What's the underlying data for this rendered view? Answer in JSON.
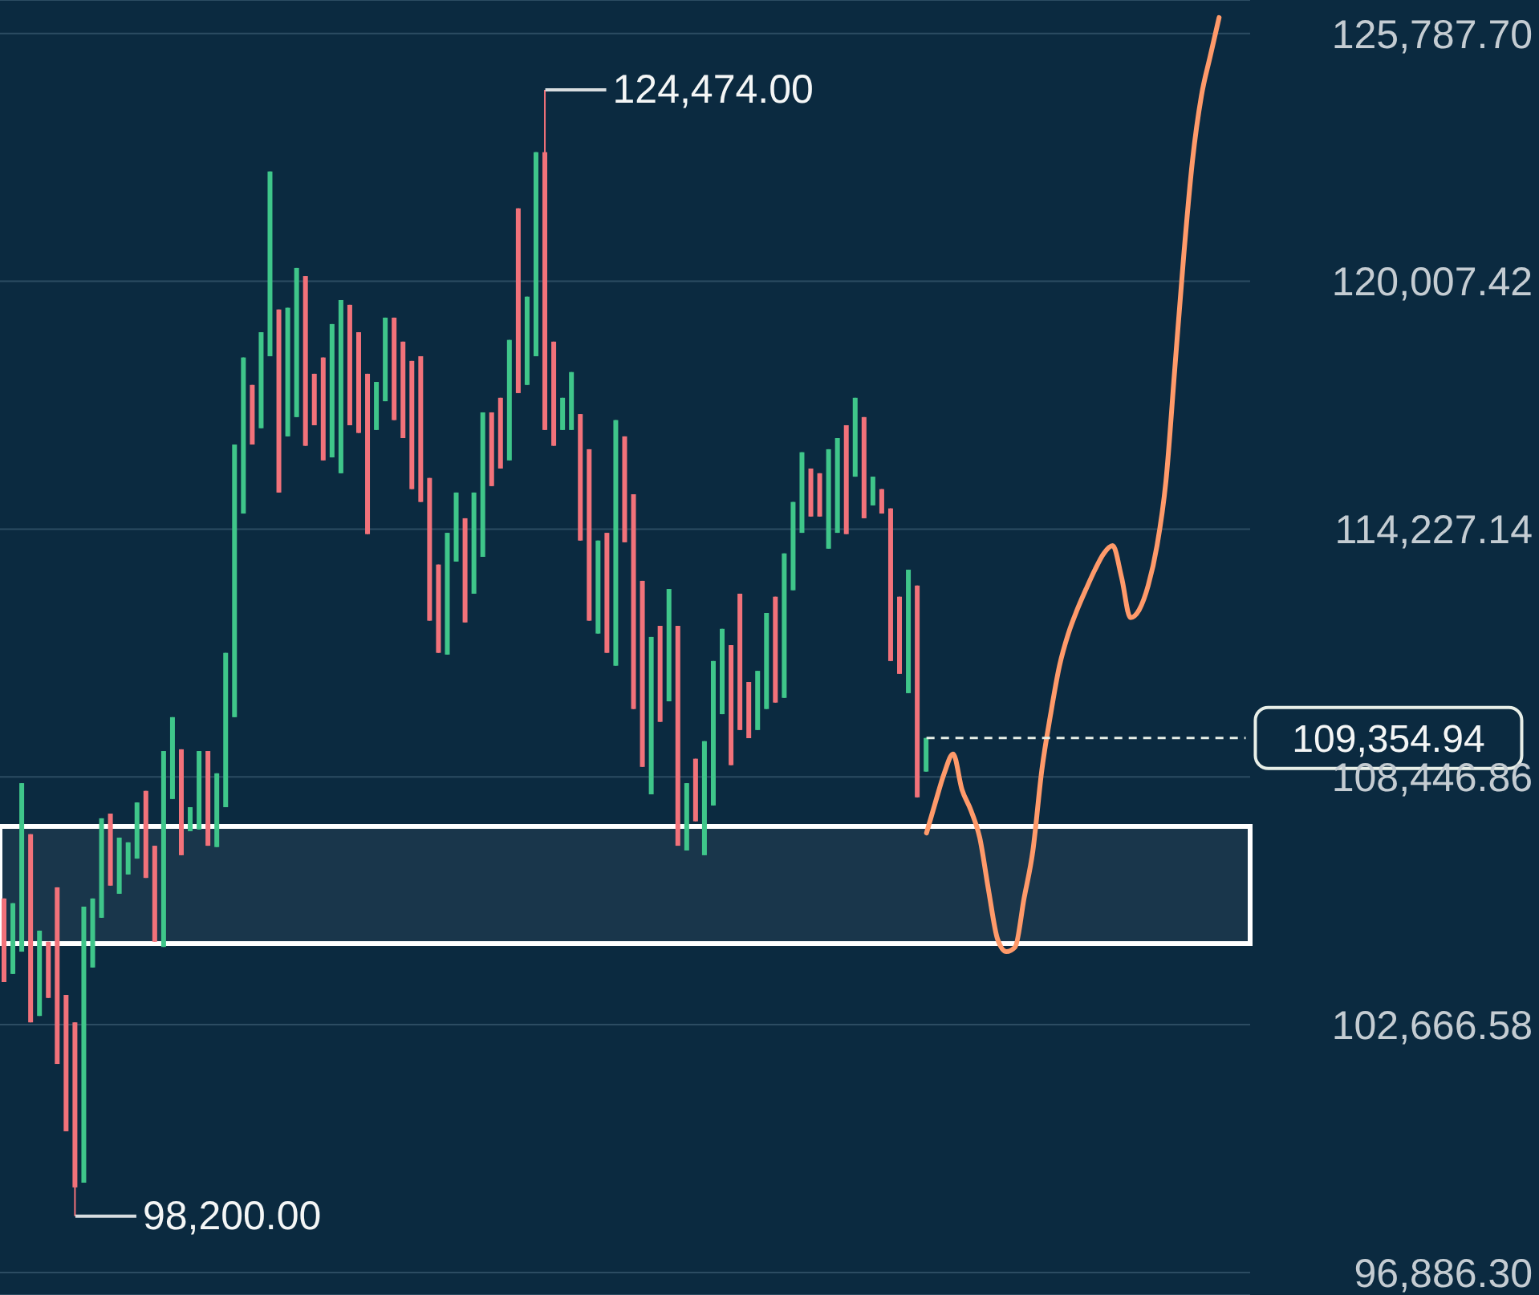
{
  "chart_data": {
    "type": "candlestick",
    "categories": [
      null,
      null,
      null,
      null,
      null,
      null,
      null,
      null,
      null,
      null,
      null,
      null,
      null,
      null,
      null,
      null,
      null,
      null,
      null,
      null,
      null,
      null,
      null,
      null,
      null,
      null,
      null,
      null,
      null,
      null,
      null,
      null,
      null,
      null,
      null,
      null,
      null,
      null,
      null,
      null,
      null,
      null,
      null,
      null,
      null,
      null,
      null,
      null,
      null,
      null,
      null,
      null,
      null,
      null,
      null,
      null,
      null,
      null,
      null,
      null,
      null,
      null,
      null,
      null,
      null,
      null,
      null,
      null,
      null,
      null,
      null,
      null,
      null,
      null,
      null,
      null,
      null,
      null,
      null,
      null,
      null,
      null,
      null,
      null,
      null,
      null,
      null,
      null,
      null,
      null,
      null,
      null,
      null,
      null,
      null,
      null,
      null,
      null,
      null,
      null,
      null,
      null,
      null,
      null,
      null,
      null,
      null,
      null,
      null,
      null,
      null,
      null,
      null,
      null,
      null,
      null,
      null,
      null,
      null,
      null,
      null,
      null,
      null,
      null,
      null,
      null,
      null,
      null,
      null,
      null,
      null,
      null,
      null,
      null,
      null,
      null,
      null,
      null,
      null,
      null,
      null
    ],
    "ohlc": [
      [
        105610,
        105610,
        103660,
        103660
      ],
      [
        103850,
        105500,
        103850,
        105500
      ],
      [
        104370,
        108300,
        104370,
        108300
      ],
      [
        107110,
        107110,
        102720,
        102720
      ],
      [
        102870,
        104860,
        102870,
        104860
      ],
      [
        104600,
        104600,
        103290,
        103290
      ],
      [
        105870,
        105870,
        101750,
        101750
      ],
      [
        103360,
        103360,
        100180,
        100180
      ],
      [
        102720,
        102720,
        98200,
        98870
      ],
      [
        98980,
        105420,
        98980,
        105420
      ],
      [
        104000,
        105610,
        104000,
        105610
      ],
      [
        105160,
        107480,
        105160,
        107480
      ],
      [
        107590,
        107590,
        105910,
        105910
      ],
      [
        105720,
        107030,
        105720,
        107030
      ],
      [
        106170,
        106920,
        106170,
        106920
      ],
      [
        106540,
        107850,
        106540,
        107850
      ],
      [
        108120,
        108120,
        106090,
        106090
      ],
      [
        106840,
        106840,
        104600,
        104600
      ],
      [
        104480,
        109050,
        104480,
        109050
      ],
      [
        107930,
        109840,
        107930,
        109840
      ],
      [
        109090,
        109090,
        106620,
        106620
      ],
      [
        107180,
        107740,
        107180,
        107740
      ],
      [
        107220,
        109050,
        107220,
        109050
      ],
      [
        109050,
        109050,
        106840,
        106840
      ],
      [
        106810,
        108530,
        106810,
        108530
      ],
      [
        107740,
        111340,
        107740,
        111340
      ],
      [
        109840,
        116200,
        109840,
        116200
      ],
      [
        114590,
        118230,
        114590,
        118230
      ],
      [
        117590,
        117590,
        116200,
        116200
      ],
      [
        116580,
        118820,
        116580,
        118820
      ],
      [
        118260,
        122570,
        118260,
        122570
      ],
      [
        119350,
        119350,
        115080,
        115080
      ],
      [
        116390,
        119390,
        116390,
        119390
      ],
      [
        116840,
        120320,
        116840,
        120320
      ],
      [
        120130,
        120130,
        116170,
        116170
      ],
      [
        117850,
        117850,
        116650,
        116650
      ],
      [
        118230,
        118230,
        115830,
        115830
      ],
      [
        115900,
        119010,
        115900,
        119010
      ],
      [
        115530,
        119570,
        115530,
        119570
      ],
      [
        119460,
        119460,
        116650,
        116650
      ],
      [
        118820,
        118820,
        116470,
        116470
      ],
      [
        117850,
        117850,
        114110,
        114110
      ],
      [
        116540,
        117660,
        116540,
        117660
      ],
      [
        117210,
        119160,
        117210,
        119160
      ],
      [
        119160,
        119160,
        116770,
        116770
      ],
      [
        118600,
        118600,
        116350,
        116350
      ],
      [
        118150,
        118150,
        115160,
        115160
      ],
      [
        118260,
        118260,
        114860,
        114860
      ],
      [
        115420,
        115420,
        112090,
        112090
      ],
      [
        113400,
        113400,
        111340,
        111340
      ],
      [
        111300,
        114140,
        111300,
        114140
      ],
      [
        113470,
        115080,
        113470,
        115080
      ],
      [
        114480,
        114480,
        112050,
        112050
      ],
      [
        112720,
        115080,
        112720,
        115080
      ],
      [
        113580,
        116950,
        113580,
        116950
      ],
      [
        116950,
        116950,
        115230,
        115230
      ],
      [
        117290,
        117290,
        115640,
        115640
      ],
      [
        115830,
        118640,
        115830,
        118640
      ],
      [
        121710,
        121710,
        117400,
        117400
      ],
      [
        117590,
        119650,
        117590,
        119650
      ],
      [
        118260,
        123020,
        118260,
        123020
      ],
      [
        123020,
        124474,
        116540,
        116540
      ],
      [
        118600,
        118600,
        116170,
        116170
      ],
      [
        116540,
        117290,
        116540,
        117290
      ],
      [
        116540,
        117890,
        116540,
        117890
      ],
      [
        116910,
        116910,
        113960,
        113960
      ],
      [
        116090,
        116090,
        112090,
        112090
      ],
      [
        111790,
        113960,
        111790,
        113960
      ],
      [
        114140,
        114140,
        111340,
        111340
      ],
      [
        111040,
        116770,
        111040,
        116770
      ],
      [
        116390,
        116390,
        113920,
        113920
      ],
      [
        115040,
        115040,
        110030,
        110030
      ],
      [
        113020,
        113020,
        108680,
        108680
      ],
      [
        108040,
        111710,
        108040,
        111710
      ],
      [
        111970,
        111970,
        109730,
        109730
      ],
      [
        110210,
        112830,
        110210,
        112830
      ],
      [
        111970,
        111970,
        106840,
        106840
      ],
      [
        106730,
        108300,
        106730,
        108300
      ],
      [
        108870,
        108870,
        107410,
        107410
      ],
      [
        106620,
        109280,
        106620,
        109280
      ],
      [
        107780,
        111150,
        107780,
        111150
      ],
      [
        109910,
        111900,
        109910,
        111900
      ],
      [
        111520,
        111520,
        108720,
        108720
      ],
      [
        112720,
        112720,
        109540,
        109540
      ],
      [
        110660,
        110660,
        109350,
        109350
      ],
      [
        109540,
        110920,
        109540,
        110920
      ],
      [
        110030,
        112270,
        110030,
        112270
      ],
      [
        112650,
        112650,
        110180,
        110180
      ],
      [
        110290,
        113660,
        110290,
        113660
      ],
      [
        112800,
        114860,
        112800,
        114860
      ],
      [
        114140,
        116020,
        114140,
        116020
      ],
      [
        115640,
        115640,
        114520,
        114520
      ],
      [
        115530,
        115530,
        114520,
        114520
      ],
      [
        113770,
        116090,
        113770,
        116090
      ],
      [
        114140,
        116350,
        114140,
        116350
      ],
      [
        116650,
        116650,
        114110,
        114110
      ],
      [
        115450,
        117290,
        115450,
        117290
      ],
      [
        116840,
        116840,
        114480,
        114480
      ],
      [
        114780,
        115450,
        114780,
        115450
      ],
      [
        115160,
        115160,
        114590,
        114590
      ],
      [
        114710,
        114710,
        111150,
        111150
      ],
      [
        112650,
        112650,
        110850,
        110850
      ],
      [
        110400,
        113280,
        110400,
        113280
      ],
      [
        112910,
        112910,
        107970,
        107970
      ],
      [
        108570,
        109354.94,
        108570,
        109354.94
      ],
      null,
      null,
      null,
      null,
      null,
      null,
      null,
      null,
      null,
      null,
      null,
      null,
      null,
      null,
      null,
      null,
      null,
      null,
      null,
      null,
      null,
      null,
      null,
      null,
      null,
      null,
      null,
      null,
      null,
      null,
      null,
      null,
      null,
      null,
      null,
      null
    ],
    "colors": [
      "#f2727a",
      "#3fc68a",
      "#3fc68a",
      "#f2727a",
      "#3fc68a",
      "#f2727a",
      "#f2727a",
      "#f2727a",
      "#f2727a",
      "#3fc68a",
      "#3fc68a",
      "#3fc68a",
      "#f2727a",
      "#3fc68a",
      "#3fc68a",
      "#3fc68a",
      "#f2727a",
      "#f2727a",
      "#3fc68a",
      "#3fc68a",
      "#f2727a",
      "#3fc68a",
      "#3fc68a",
      "#f2727a",
      "#3fc68a",
      "#3fc68a",
      "#3fc68a",
      "#3fc68a",
      "#f2727a",
      "#3fc68a",
      "#3fc68a",
      "#f2727a",
      "#3fc68a",
      "#3fc68a",
      "#f2727a",
      "#f2727a",
      "#f2727a",
      "#3fc68a",
      "#3fc68a",
      "#f2727a",
      "#f2727a",
      "#f2727a",
      "#3fc68a",
      "#3fc68a",
      "#f2727a",
      "#f2727a",
      "#f2727a",
      "#f2727a",
      "#f2727a",
      "#f2727a",
      "#3fc68a",
      "#3fc68a",
      "#f2727a",
      "#3fc68a",
      "#3fc68a",
      "#f2727a",
      "#f2727a",
      "#3fc68a",
      "#f2727a",
      "#3fc68a",
      "#3fc68a",
      "#f2727a",
      "#f2727a",
      "#3fc68a",
      "#3fc68a",
      "#f2727a",
      "#f2727a",
      "#3fc68a",
      "#f2727a",
      "#3fc68a",
      "#f2727a",
      "#f2727a",
      "#f2727a",
      "#3fc68a",
      "#f2727a",
      "#3fc68a",
      "#f2727a",
      "#3fc68a",
      "#f2727a",
      "#3fc68a",
      "#3fc68a",
      "#3fc68a",
      "#f2727a",
      "#f2727a",
      "#f2727a",
      "#3fc68a",
      "#3fc68a",
      "#f2727a",
      "#3fc68a",
      "#3fc68a",
      "#3fc68a",
      "#f2727a",
      "#f2727a",
      "#3fc68a",
      "#3fc68a",
      "#f2727a",
      "#3fc68a",
      "#f2727a",
      "#3fc68a",
      "#f2727a",
      "#f2727a",
      "#f2727a",
      "#3fc68a",
      "#f2727a",
      "#3fc68a",
      null,
      null,
      null,
      null,
      null,
      null,
      null,
      null,
      null,
      null,
      null,
      null,
      null,
      null,
      null,
      null,
      null,
      null,
      null,
      null,
      null,
      null,
      null,
      null,
      null,
      null,
      null,
      null,
      null,
      null,
      null,
      null,
      null,
      null,
      null,
      null
    ],
    "series": [
      {
        "type": "line",
        "color": "#ff9a6a",
        "values": [
          null,
          null,
          null,
          null,
          null,
          null,
          null,
          null,
          null,
          null,
          null,
          null,
          null,
          null,
          null,
          null,
          null,
          null,
          null,
          null,
          null,
          null,
          null,
          null,
          null,
          null,
          null,
          null,
          null,
          null,
          null,
          null,
          null,
          null,
          null,
          null,
          null,
          null,
          null,
          null,
          null,
          null,
          null,
          null,
          null,
          null,
          null,
          null,
          null,
          null,
          null,
          null,
          null,
          null,
          null,
          null,
          null,
          null,
          null,
          null,
          null,
          null,
          null,
          null,
          null,
          null,
          null,
          null,
          null,
          null,
          null,
          null,
          null,
          null,
          null,
          null,
          null,
          null,
          null,
          null,
          null,
          null,
          null,
          null,
          null,
          null,
          null,
          null,
          null,
          null,
          null,
          null,
          null,
          null,
          null,
          null,
          null,
          null,
          null,
          null,
          null,
          null,
          null,
          null,
          107140,
          107850,
          108530,
          108980,
          108150,
          107670,
          107030,
          105800,
          104670,
          104370,
          104480,
          105610,
          106730,
          108600,
          109910,
          111040,
          111790,
          112350,
          112830,
          113280,
          113660,
          113840,
          113100,
          112160,
          112350,
          112910,
          113840,
          115340,
          117960,
          120580,
          122830,
          124330,
          125260,
          126160,
          null,
          null,
          null
        ]
      }
    ],
    "ylim": [
      96360,
      126570
    ],
    "yticks": [
      {
        "value": 96886.3,
        "label": "96,886.30"
      },
      {
        "value": 102666.58,
        "label": "102,666.58"
      },
      {
        "value": 108446.86,
        "label": "108,446.86"
      },
      {
        "value": 114227.14,
        "label": "114,227.14"
      },
      {
        "value": 120007.42,
        "label": "120,007.42"
      },
      {
        "value": 125787.7,
        "label": "125,787.70"
      }
    ],
    "grid": "y",
    "tick_labels": "y",
    "ref_lines": [
      {
        "axis": "y",
        "value": 109354.94,
        "label": "109,354.94",
        "line_style": "dashed",
        "color": "#e8efe8"
      }
    ],
    "bands": [
      {
        "axis": "y",
        "from": 104560,
        "to": 107290,
        "color": "#ffffff"
      }
    ],
    "annotations": [
      "124,474.00",
      "98,200.00"
    ]
  }
}
